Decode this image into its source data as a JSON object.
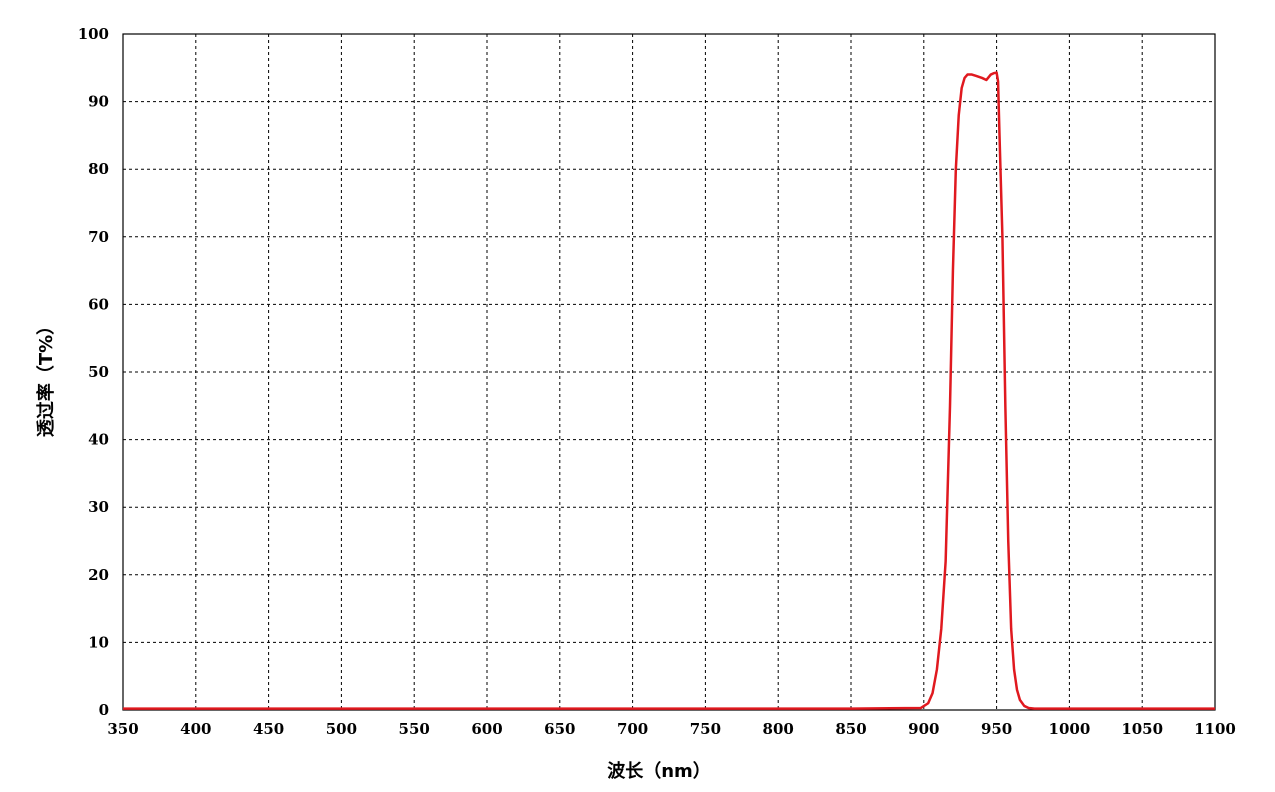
{
  "chart_data": {
    "type": "line",
    "title": "",
    "xlabel": "波长（nm）",
    "ylabel": "透过率（T%）",
    "xlim": [
      350,
      1100
    ],
    "ylim": [
      0,
      100
    ],
    "x_ticks": [
      350,
      400,
      450,
      500,
      550,
      600,
      650,
      700,
      750,
      800,
      850,
      900,
      950,
      1000,
      1050,
      1100
    ],
    "y_ticks": [
      0,
      10,
      20,
      30,
      40,
      50,
      60,
      70,
      80,
      90,
      100
    ],
    "grid": true,
    "legend": "none",
    "series": [
      {
        "color": "#e0191f",
        "x": [
          350,
          500,
          700,
          850,
          898,
          903,
          906,
          909,
          912,
          915,
          918,
          920,
          922,
          924,
          926,
          928,
          930,
          933,
          936,
          940,
          943,
          946,
          948,
          950,
          951,
          952,
          954,
          956,
          958,
          960,
          962,
          964,
          966,
          969,
          972,
          976,
          985,
          1000,
          1100
        ],
        "y": [
          0.2,
          0.2,
          0.2,
          0.2,
          0.3,
          1,
          2.5,
          6,
          12,
          22,
          45,
          65,
          80,
          88,
          92,
          93.5,
          94,
          94,
          93.8,
          93.5,
          93.2,
          94,
          94.2,
          94.3,
          93,
          85,
          70,
          45,
          25,
          12,
          6,
          3,
          1.5,
          0.6,
          0.3,
          0.2,
          0.2,
          0.2,
          0.2
        ]
      }
    ]
  }
}
